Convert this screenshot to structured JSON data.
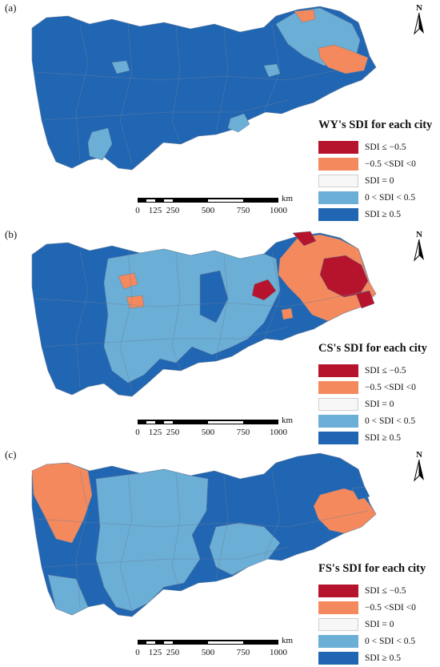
{
  "panels": [
    {
      "label": "(a)",
      "legend_title": "WY's SDI for each city",
      "north_label": "N",
      "scale_unit": "km",
      "scale_ticks": [
        "0",
        "125",
        "250",
        "500",
        "750",
        "1000"
      ],
      "scale_ticks_km": [
        0,
        125,
        250,
        500,
        750,
        1000
      ],
      "highlight_regions": [
        {
          "class": "0 < SDI < 0.5",
          "color": "#6baed6"
        },
        {
          "class": "−0.5 <SDI <0",
          "color": "#f4895d"
        }
      ]
    },
    {
      "label": "(b)",
      "legend_title": "CS's SDI for each city",
      "north_label": "N",
      "scale_unit": "km",
      "scale_ticks": [
        "0",
        "125",
        "250",
        "500",
        "750",
        "1000"
      ],
      "scale_ticks_km": [
        0,
        125,
        250,
        500,
        750,
        1000
      ],
      "highlight_regions": [
        {
          "class": "SDI ≤ −0.5",
          "color": "#b5142c"
        },
        {
          "class": "−0.5 <SDI <0",
          "color": "#f4895d"
        },
        {
          "class": "0 < SDI < 0.5",
          "color": "#6baed6"
        }
      ]
    },
    {
      "label": "(c)",
      "legend_title": "FS's SDI for each city",
      "north_label": "N",
      "scale_unit": "km",
      "scale_ticks": [
        "0",
        "125",
        "250",
        "500",
        "750",
        "1000"
      ],
      "scale_ticks_km": [
        0,
        125,
        250,
        500,
        750,
        1000
      ],
      "highlight_regions": [
        {
          "class": "−0.5 <SDI <0",
          "color": "#f4895d"
        },
        {
          "class": "0 < SDI < 0.5",
          "color": "#6baed6"
        }
      ]
    }
  ],
  "legend_classes": [
    {
      "label": "SDI ≤ −0.5",
      "color": "#b5142c"
    },
    {
      "label": "−0.5 <SDI <0",
      "color": "#f4895d"
    },
    {
      "label": "SDI = 0",
      "color": "#f7f7f7"
    },
    {
      "label": "0 < SDI < 0.5",
      "color": "#6baed6"
    },
    {
      "label": "SDI ≥ 0.5",
      "color": "#2166b3"
    }
  ],
  "boundary_color": "#6b7f99"
}
